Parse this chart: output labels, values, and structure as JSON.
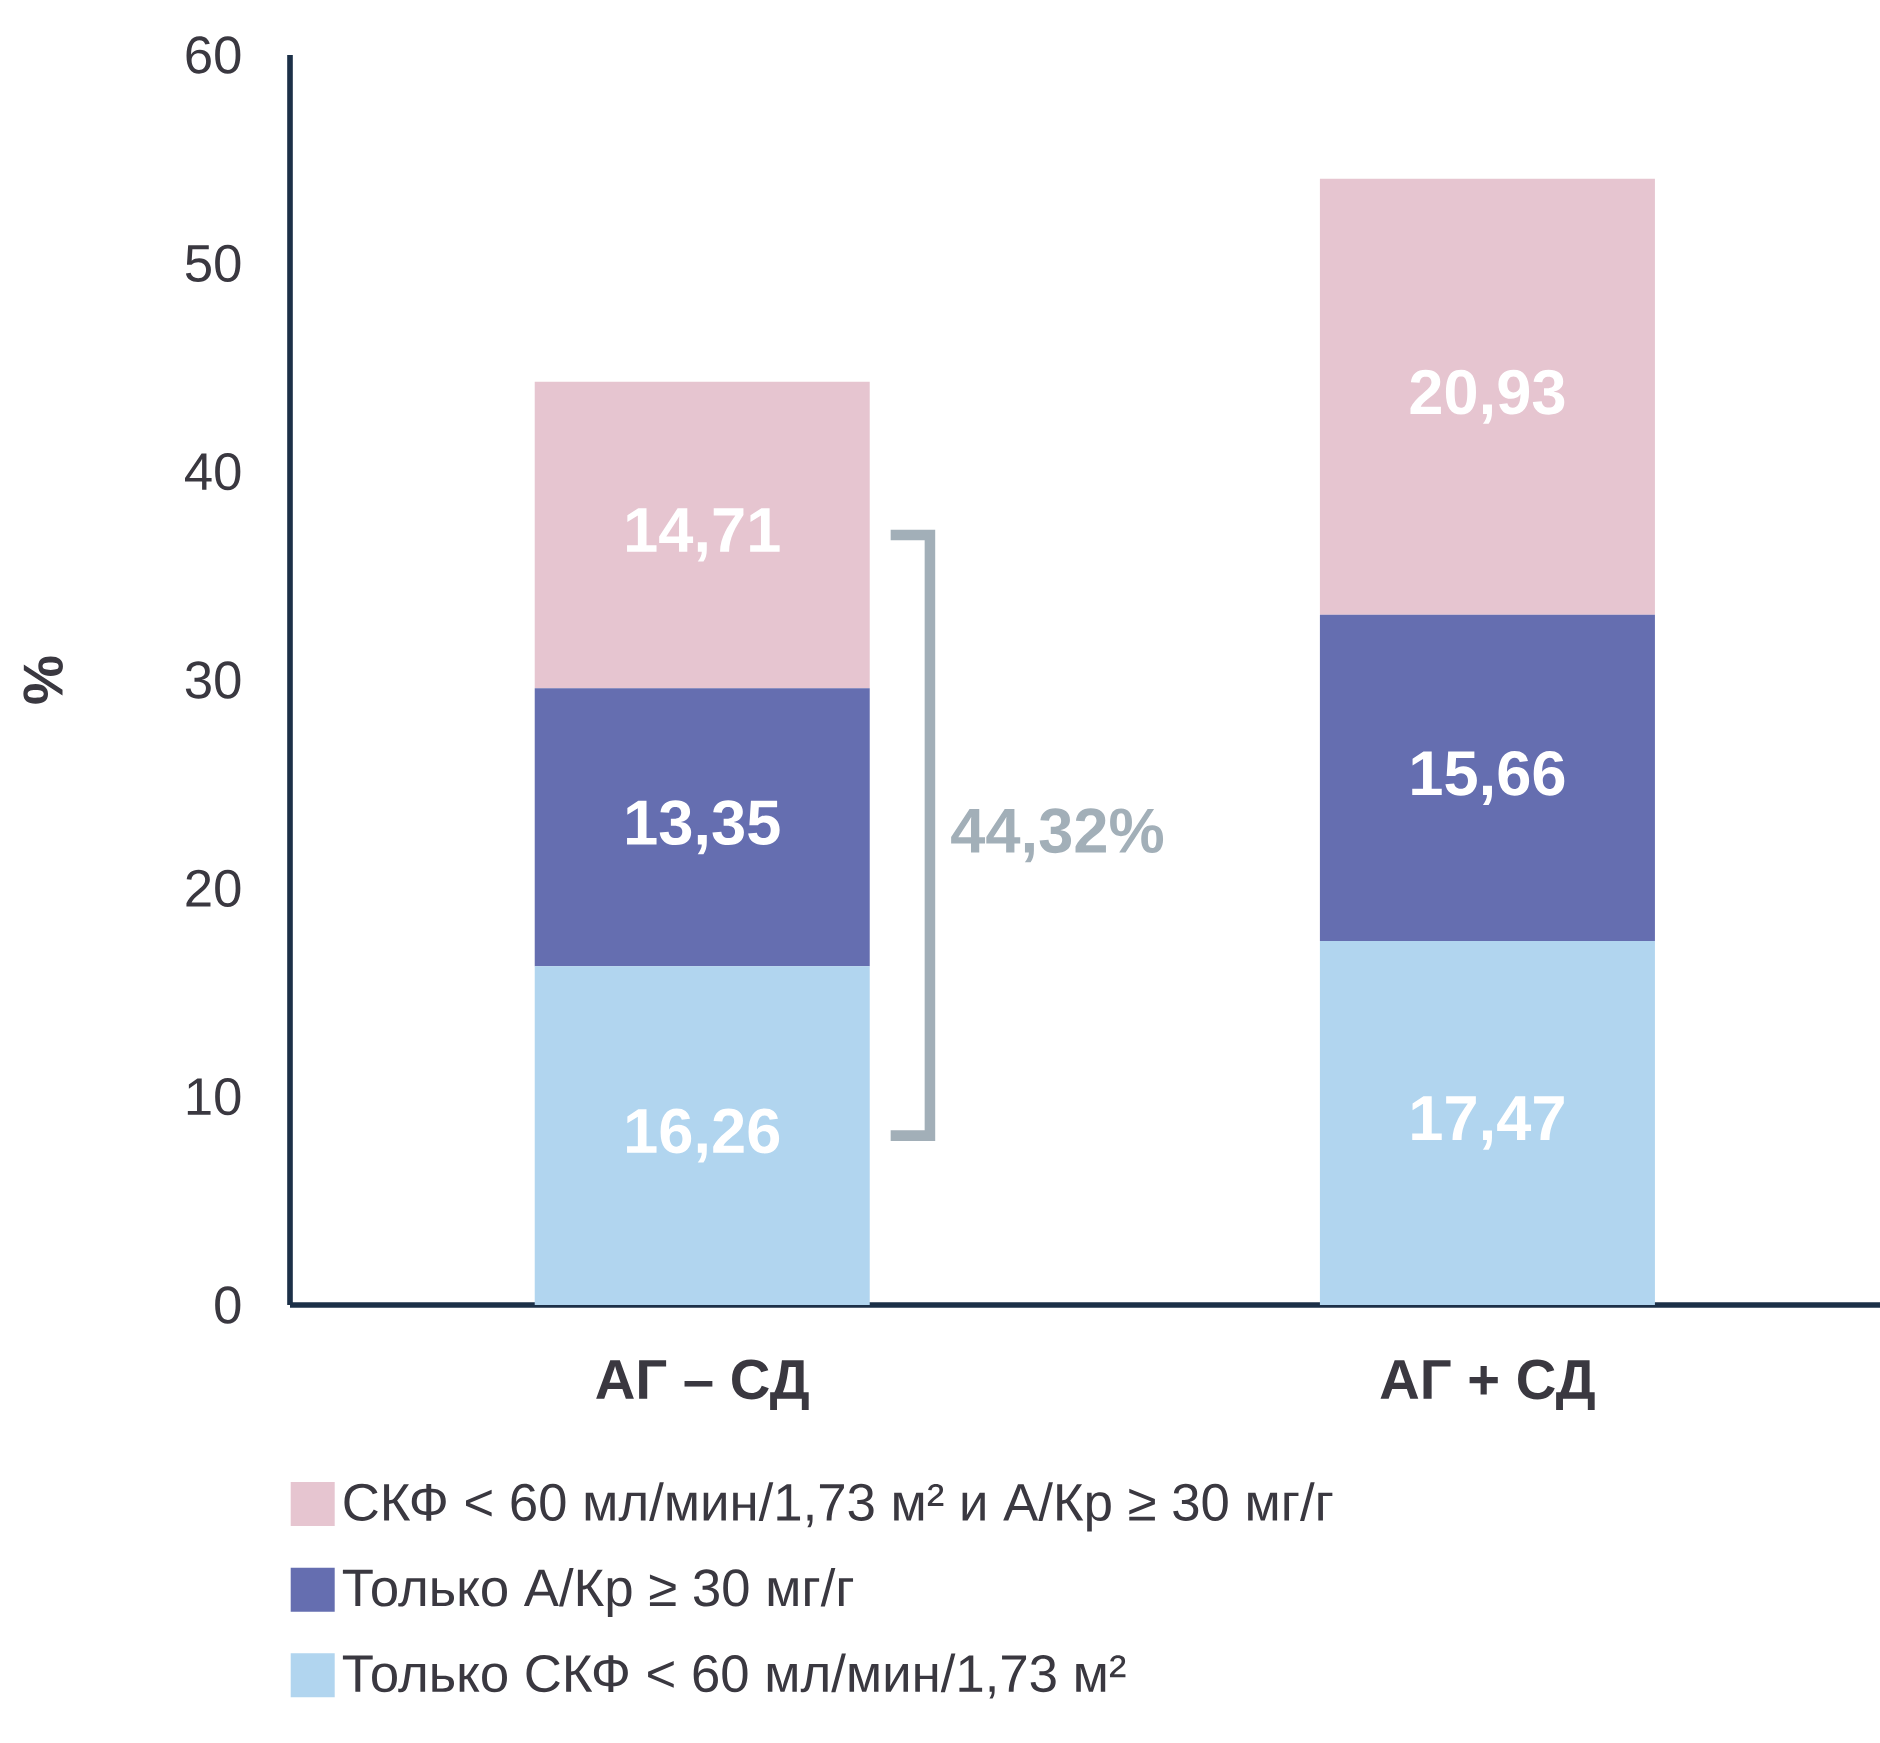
{
  "chart_data": {
    "type": "bar",
    "stacked": true,
    "ylabel": "%",
    "categories": [
      "АГ – СД",
      "АГ + СД"
    ],
    "series": [
      {
        "name": "Только СКФ < 60 мл/мин/1,73 м²",
        "color": "#b1d5ef",
        "values": [
          16.26,
          17.47
        ],
        "value_labels": [
          "16,26",
          "17,47"
        ]
      },
      {
        "name": "Только А/Кр ≥ 30 мг/г",
        "color": "#656eb0",
        "values": [
          13.35,
          15.66
        ],
        "value_labels": [
          "13,35",
          "15,66"
        ]
      },
      {
        "name": "СКФ < 60 мл/мин/1,73 м² и А/Кр ≥ 30 мг/г",
        "color": "#e6c5d0",
        "values": [
          14.71,
          20.93
        ],
        "value_labels": [
          "14,71",
          "20,93"
        ]
      }
    ],
    "ylim": [
      0,
      60
    ],
    "yticks": [
      0,
      10,
      20,
      30,
      40,
      50,
      60
    ],
    "legend": "bottom",
    "annotations": [
      "44,32%"
    ]
  }
}
